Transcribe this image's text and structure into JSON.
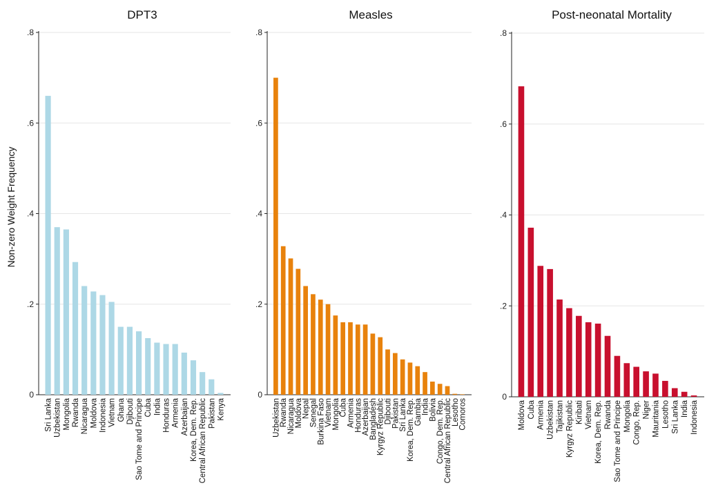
{
  "ylabel": "Non-zero Weight Frequency",
  "chart_data": [
    {
      "type": "bar",
      "title": "DPT3",
      "color": "#add8e6",
      "ylim": [
        0,
        0.8
      ],
      "yticks": [
        0,
        0.2,
        0.4,
        0.6,
        0.8
      ],
      "ytick_labels": [
        "0",
        ".2",
        ".4",
        ".6",
        ".8"
      ],
      "grid": true,
      "categories": [
        "Sri Lanka",
        "Uzbekistan",
        "Mongolia",
        "Rwanda",
        "Nicaragua",
        "Moldova",
        "Indonesia",
        "Vietnam",
        "Ghana",
        "Djibouti",
        "Sao Tome and Principe",
        "Cuba",
        "India",
        "Honduras",
        "Armenia",
        "Azerbaijan",
        "Korea, Dem. Rep.",
        "Central African Republic",
        "Pakistan",
        "Kenya"
      ],
      "values": [
        0.66,
        0.37,
        0.365,
        0.293,
        0.24,
        0.228,
        0.22,
        0.205,
        0.15,
        0.15,
        0.14,
        0.125,
        0.115,
        0.112,
        0.112,
        0.093,
        0.076,
        0.05,
        0.034,
        0.004
      ]
    },
    {
      "type": "bar",
      "title": "Measles",
      "color": "#e8820c",
      "ylim": [
        0,
        0.8
      ],
      "yticks": [
        0,
        0.2,
        0.4,
        0.6,
        0.8
      ],
      "ytick_labels": [
        "0",
        ".2",
        ".4",
        ".6",
        ".8"
      ],
      "grid": true,
      "categories": [
        "Uzbekistan",
        "Rwanda",
        "Nicaragua",
        "Moldova",
        "Nepal",
        "Senegal",
        "Burkina Faso",
        "Vietnam",
        "Mongolia",
        "Cuba",
        "Armenia",
        "Honduras",
        "Azerbaijan",
        "Bangladesh",
        "Kyrgyz Republic",
        "Djibouti",
        "Pakistan",
        "Sri Lanka",
        "Korea, Dem. Rep.",
        "Gambia",
        "India",
        "Bolivia",
        "Congo, Dem. Rep.",
        "Central African Republic",
        "Lesotho",
        "Comoros"
      ],
      "values": [
        0.7,
        0.328,
        0.301,
        0.278,
        0.24,
        0.222,
        0.21,
        0.2,
        0.175,
        0.16,
        0.16,
        0.155,
        0.155,
        0.135,
        0.127,
        0.1,
        0.092,
        0.078,
        0.071,
        0.063,
        0.05,
        0.029,
        0.024,
        0.019,
        0.002,
        0.001
      ]
    },
    {
      "type": "bar",
      "title": "Post-neonatal Mortality",
      "color": "#c8102e",
      "ylim": [
        0,
        0.8
      ],
      "yticks": [
        0,
        0.2,
        0.4,
        0.6,
        0.8
      ],
      "ytick_labels": [
        "0",
        ".2",
        ".4",
        ".6",
        ".8"
      ],
      "grid": true,
      "categories": [
        "Moldova",
        "Cuba",
        "Armenia",
        "Uzbekistan",
        "Tajikistan",
        "Kyrgyz Republic",
        "Kiribati",
        "Vietnam",
        "Korea, Dem. Rep.",
        "Rwanda",
        "Sao Tome and Principe",
        "Mongolia",
        "Congo, Rep.",
        "Niger",
        "Mauritania",
        "Lesotho",
        "Sri Lanka",
        "India",
        "Indonesia"
      ],
      "values": [
        0.683,
        0.372,
        0.288,
        0.281,
        0.214,
        0.195,
        0.178,
        0.164,
        0.161,
        0.134,
        0.09,
        0.074,
        0.066,
        0.056,
        0.051,
        0.035,
        0.019,
        0.011,
        0.003
      ]
    }
  ]
}
